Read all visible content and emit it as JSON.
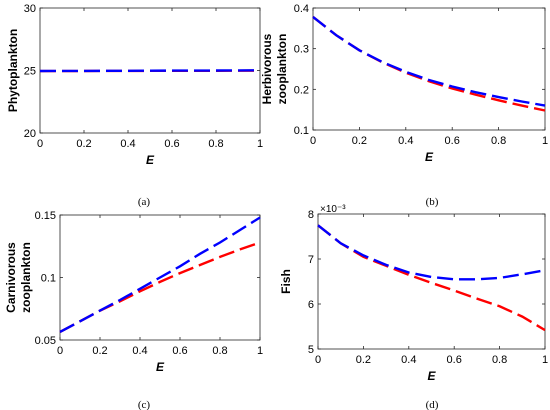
{
  "chart_data": [
    {
      "type": "line",
      "caption": "(a)",
      "xlabel": "E",
      "ylabel": "Phytoplankton",
      "xlim": [
        0,
        1
      ],
      "ylim": [
        20,
        30
      ],
      "xticks": [
        0,
        0.2,
        0.4,
        0.6,
        0.8,
        1
      ],
      "xtick_labels": [
        "0",
        "0.2",
        "0.4",
        "0.6",
        "0.8",
        "1"
      ],
      "yticks": [
        20,
        25,
        30
      ],
      "ytick_labels": [
        "20",
        "25",
        "30"
      ],
      "y_exponent_label": "",
      "grid": false,
      "series": [
        {
          "color": "#ff0000",
          "dash": "long-dash",
          "x": [
            0,
            0.2,
            0.4,
            0.6,
            0.8,
            1.0
          ],
          "y": [
            24.95,
            24.96,
            24.97,
            24.98,
            24.98,
            24.99
          ]
        },
        {
          "color": "#0000ff",
          "dash": "long-dash",
          "x": [
            0,
            0.2,
            0.4,
            0.6,
            0.8,
            1.0
          ],
          "y": [
            24.96,
            24.97,
            24.98,
            24.99,
            25.0,
            25.02
          ]
        }
      ]
    },
    {
      "type": "line",
      "caption": "(b)",
      "xlabel": "E",
      "ylabel": "Herbivorous zooplankton",
      "ylabel_lines": [
        "Herbivorous",
        "zooplankton"
      ],
      "xlim": [
        0,
        1
      ],
      "ylim": [
        0.1,
        0.4
      ],
      "xticks": [
        0,
        0.2,
        0.4,
        0.6,
        0.8,
        1
      ],
      "xtick_labels": [
        "0",
        "0.2",
        "0.4",
        "0.6",
        "0.8",
        "1"
      ],
      "yticks": [
        0.1,
        0.2,
        0.3,
        0.4
      ],
      "ytick_labels": [
        "0.1",
        "0.2",
        "0.3",
        "0.4"
      ],
      "y_exponent_label": "",
      "grid": false,
      "series": [
        {
          "color": "#ff0000",
          "dash": "long-dash",
          "x": [
            0,
            0.1,
            0.2,
            0.3,
            0.4,
            0.5,
            0.6,
            0.7,
            0.8,
            0.9,
            1.0
          ],
          "y": [
            0.378,
            0.333,
            0.296,
            0.266,
            0.241,
            0.22,
            0.202,
            0.187,
            0.173,
            0.16,
            0.148
          ]
        },
        {
          "color": "#0000ff",
          "dash": "long-dash",
          "x": [
            0,
            0.1,
            0.2,
            0.3,
            0.4,
            0.5,
            0.6,
            0.7,
            0.8,
            0.9,
            1.0
          ],
          "y": [
            0.378,
            0.333,
            0.296,
            0.267,
            0.243,
            0.223,
            0.207,
            0.193,
            0.181,
            0.17,
            0.16
          ]
        }
      ]
    },
    {
      "type": "line",
      "caption": "(c)",
      "xlabel": "E",
      "ylabel": "Carnivorous zooplankton",
      "ylabel_lines": [
        "Carnivorous",
        "zooplankton"
      ],
      "xlim": [
        0,
        1
      ],
      "ylim": [
        0.05,
        0.15
      ],
      "xticks": [
        0,
        0.2,
        0.4,
        0.6,
        0.8,
        1
      ],
      "xtick_labels": [
        "0",
        "0.2",
        "0.4",
        "0.6",
        "0.8",
        "1"
      ],
      "yticks": [
        0.05,
        0.1,
        0.15
      ],
      "ytick_labels": [
        "0.05",
        "0.1",
        "0.15"
      ],
      "y_exponent_label": "",
      "grid": false,
      "series": [
        {
          "color": "#ff0000",
          "dash": "long-dash",
          "x": [
            0,
            0.1,
            0.2,
            0.3,
            0.4,
            0.5,
            0.6,
            0.7,
            0.8,
            0.9,
            1.0
          ],
          "y": [
            0.0565,
            0.065,
            0.0735,
            0.081,
            0.089,
            0.0965,
            0.1035,
            0.11,
            0.1165,
            0.1225,
            0.128
          ]
        },
        {
          "color": "#0000ff",
          "dash": "long-dash",
          "x": [
            0,
            0.1,
            0.2,
            0.3,
            0.4,
            0.5,
            0.6,
            0.7,
            0.8,
            0.9,
            1.0
          ],
          "y": [
            0.0565,
            0.065,
            0.0735,
            0.082,
            0.091,
            0.1,
            0.109,
            0.119,
            0.128,
            0.138,
            0.148
          ]
        }
      ]
    },
    {
      "type": "line",
      "caption": "(d)",
      "xlabel": "E",
      "ylabel": "Fish",
      "xlim": [
        0,
        1
      ],
      "ylim": [
        5,
        8
      ],
      "xticks": [
        0,
        0.2,
        0.4,
        0.6,
        0.8,
        1
      ],
      "xtick_labels": [
        "0",
        "0.2",
        "0.4",
        "0.6",
        "0.8",
        "1"
      ],
      "yticks": [
        5,
        6,
        7,
        8
      ],
      "ytick_labels": [
        "5",
        "6",
        "7",
        "8"
      ],
      "y_exponent_label": "×10⁻³",
      "grid": false,
      "series": [
        {
          "color": "#ff0000",
          "dash": "long-dash",
          "x": [
            0,
            0.1,
            0.2,
            0.3,
            0.4,
            0.5,
            0.6,
            0.7,
            0.8,
            0.9,
            1.0
          ],
          "y": [
            7.75,
            7.35,
            7.05,
            6.85,
            6.65,
            6.47,
            6.3,
            6.12,
            5.95,
            5.72,
            5.42
          ]
        },
        {
          "color": "#0000ff",
          "dash": "long-dash",
          "x": [
            0,
            0.1,
            0.2,
            0.3,
            0.4,
            0.5,
            0.6,
            0.7,
            0.8,
            0.9,
            1.0
          ],
          "y": [
            7.75,
            7.35,
            7.08,
            6.87,
            6.7,
            6.6,
            6.55,
            6.55,
            6.58,
            6.66,
            6.75
          ]
        }
      ]
    }
  ]
}
